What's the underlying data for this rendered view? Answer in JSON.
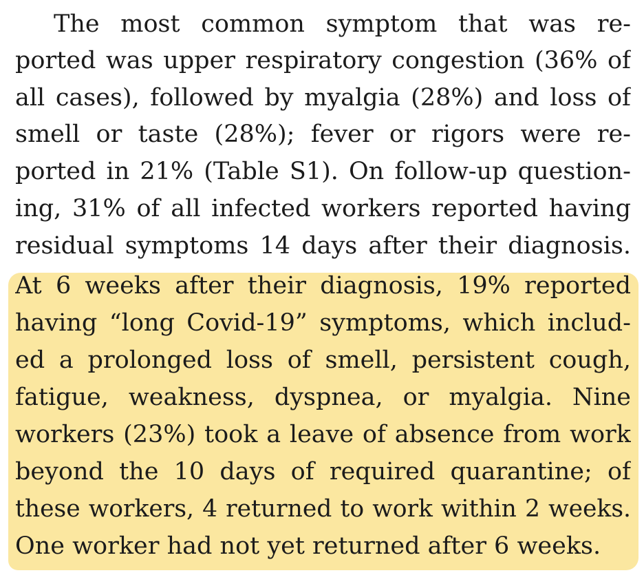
{
  "paragraph": {
    "plain_lines": [
      "The most common symptom that was re-",
      "ported was upper respiratory congestion (36% of",
      "all cases), followed by myalgia (28%) and loss of",
      "smell or taste (28%); fever or rigors were re-",
      "ported in 21% (Table S1). On follow-up question-",
      "ing, 31% of all infected workers reported having",
      "residual symptoms 14 days after their diagnosis."
    ],
    "highlighted_lines": [
      "At 6 weeks after their diagnosis, 19% reported",
      "having “long Covid-19” symptoms, which includ-",
      "ed a prolonged loss of smell, persistent cough,",
      "fatigue, weakness, dyspnea, or myalgia. Nine",
      "workers (23%) took a leave of absence from work",
      "beyond the 10 days of required quarantine; of",
      "these workers, 4 returned to work within 2 weeks.",
      "One worker had not yet returned after 6 weeks."
    ],
    "highlight_color": "#fbe7a0"
  }
}
